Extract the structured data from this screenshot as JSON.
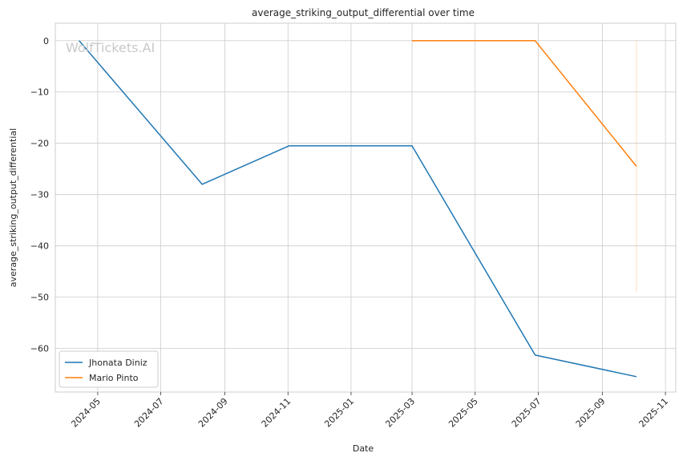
{
  "chart_data": {
    "type": "line",
    "title": "average_striking_output_differential over time",
    "xlabel": "Date",
    "ylabel": "average_striking_output_differential",
    "watermark": "WolfTickets.AI",
    "x_ticks": [
      "2024-05",
      "2024-07",
      "2024-09",
      "2024-11",
      "2025-01",
      "2025-03",
      "2025-05",
      "2025-07",
      "2025-09",
      "2025-11"
    ],
    "y_ticks": [
      0,
      -10,
      -20,
      -30,
      -40,
      -50,
      -60
    ],
    "xlim": [
      "2024-03-21",
      "2025-11-11"
    ],
    "ylim": [
      -68.5,
      3.4
    ],
    "grid": true,
    "legend_position": "lower-left",
    "series": [
      {
        "name": "Jhonata Diniz",
        "color": "#1f77b4",
        "points": [
          {
            "x": "2024-04-13",
            "y": 0.0
          },
          {
            "x": "2024-08-10",
            "y": -28.0
          },
          {
            "x": "2024-11-02",
            "y": -20.5
          },
          {
            "x": "2025-03-01",
            "y": -20.5
          },
          {
            "x": "2025-06-28",
            "y": -61.3
          },
          {
            "x": "2025-10-04",
            "y": -65.5
          }
        ]
      },
      {
        "name": "Mario Pinto",
        "color": "#ff7f0e",
        "points": [
          {
            "x": "2025-03-01",
            "y": 0.0
          },
          {
            "x": "2025-06-28",
            "y": 0.0
          },
          {
            "x": "2025-10-04",
            "y": -24.5
          }
        ],
        "band": {
          "x": "2025-10-04",
          "y_top": 0.0,
          "y_bottom": -49.0
        }
      }
    ]
  }
}
